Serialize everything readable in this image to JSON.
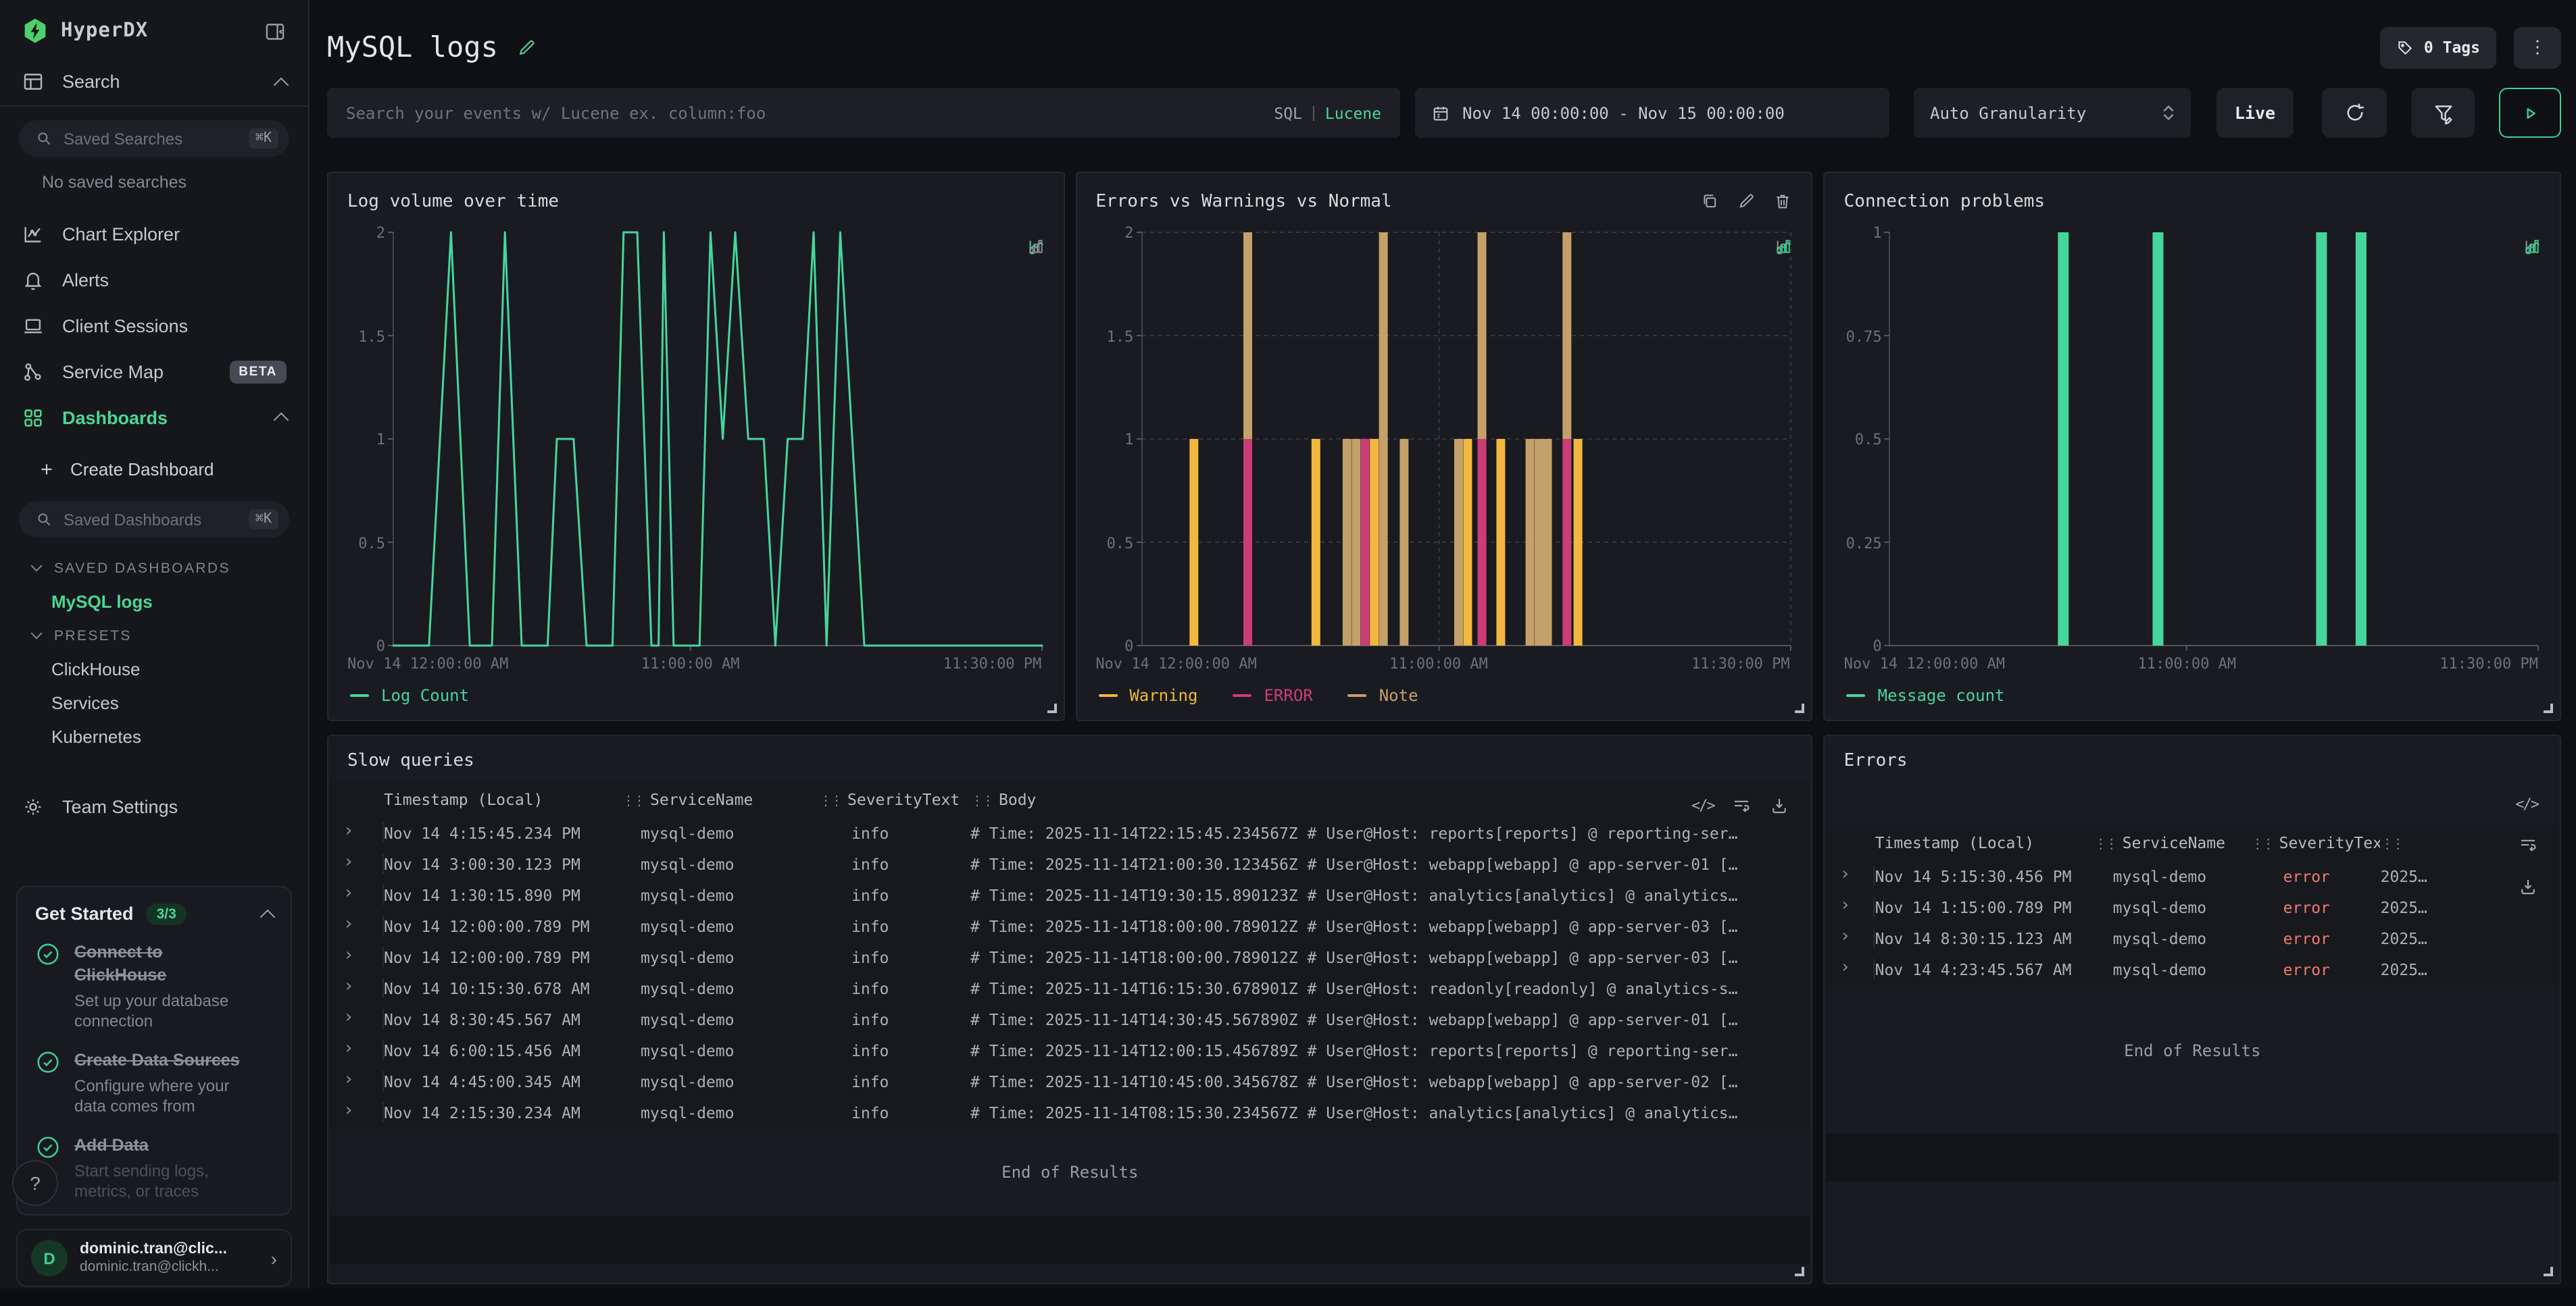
{
  "app": {
    "brand": "HyperDX"
  },
  "colors": {
    "accent_green": "#4bd795",
    "logo_green": "#50cf6e",
    "chart_green": "#45d69c",
    "warning_yellow": "#f1b73e",
    "error_pink": "#cb3d76",
    "note_tan": "#c4a06a",
    "error_text": "#ee7b72",
    "panel_bg": "#1a1b20",
    "sidebar_bg": "#16171b"
  },
  "sidebar": {
    "search_label": "Search",
    "saved_searches_placeholder": "Saved Searches",
    "shortcut": "⌘K",
    "no_saved": "No saved searches",
    "nav": [
      {
        "label": "Chart Explorer"
      },
      {
        "label": "Alerts"
      },
      {
        "label": "Client Sessions"
      },
      {
        "label": "Service Map",
        "badge": "BETA"
      },
      {
        "label": "Dashboards"
      }
    ],
    "create_dashboard": "Create Dashboard",
    "saved_dashboards_placeholder": "Saved Dashboards",
    "saved_section": "SAVED DASHBOARDS",
    "saved_items": [
      "MySQL logs"
    ],
    "presets_section": "PRESETS",
    "preset_items": [
      "ClickHouse",
      "Services",
      "Kubernetes"
    ],
    "team_settings": "Team Settings",
    "get_started": {
      "title": "Get Started",
      "badge": "3/3",
      "items": [
        {
          "title": "Connect to ClickHouse",
          "sub": "Set up your database connection"
        },
        {
          "title": "Create Data Sources",
          "sub": "Configure where your data comes from"
        },
        {
          "title": "Add Data",
          "sub": "Start sending logs, metrics, or traces"
        }
      ]
    },
    "help": "?",
    "user": {
      "initial": "D",
      "name": "dominic.tran@clic...",
      "email": "dominic.tran@clickh..."
    }
  },
  "header": {
    "title": "MySQL logs",
    "tags_label": "0 Tags",
    "kebab": "⋮"
  },
  "controls": {
    "search_placeholder": "Search your events w/ Lucene ex. column:foo",
    "sql": "SQL",
    "divider": "|",
    "lucene": "Lucene",
    "date_range": "Nov 14 00:00:00 - Nov 15 00:00:00",
    "granularity": "Auto Granularity",
    "live": "Live"
  },
  "chart_data": [
    {
      "type": "line",
      "title": "Log volume over time",
      "ylabel": "",
      "xlabel": "",
      "ylim": [
        0,
        2
      ],
      "yticks": [
        0,
        0.5,
        1,
        1.5,
        2
      ],
      "xticks": [
        {
          "label": "Nov 14 12:00:00 AM",
          "pos": 0
        },
        {
          "label": "11:00:00 AM",
          "pos": 0.458
        },
        {
          "label": "11:30:00 PM",
          "pos": 1
        }
      ],
      "grid": false,
      "active_view": "line",
      "legend": [
        {
          "label": "Log Count",
          "color": "#45d69c"
        }
      ],
      "series": [
        {
          "name": "Log Count",
          "color": "#45d69c",
          "points": [
            [
              0,
              0
            ],
            [
              0.055,
              0
            ],
            [
              0.089,
              2
            ],
            [
              0.118,
              0
            ],
            [
              0.152,
              0
            ],
            [
              0.172,
              2
            ],
            [
              0.198,
              0
            ],
            [
              0.238,
              0
            ],
            [
              0.252,
              1
            ],
            [
              0.278,
              1
            ],
            [
              0.298,
              0
            ],
            [
              0.338,
              0
            ],
            [
              0.355,
              2
            ],
            [
              0.376,
              2
            ],
            [
              0.398,
              0
            ],
            [
              0.409,
              0
            ],
            [
              0.417,
              2
            ],
            [
              0.432,
              0
            ],
            [
              0.472,
              0
            ],
            [
              0.489,
              2
            ],
            [
              0.508,
              1
            ],
            [
              0.527,
              2
            ],
            [
              0.547,
              1
            ],
            [
              0.571,
              1
            ],
            [
              0.589,
              0
            ],
            [
              0.608,
              1
            ],
            [
              0.631,
              1
            ],
            [
              0.648,
              2
            ],
            [
              0.668,
              0
            ],
            [
              0.689,
              2
            ],
            [
              0.726,
              0
            ],
            [
              0.78,
              0
            ],
            [
              1,
              0
            ]
          ]
        }
      ]
    },
    {
      "type": "stacked_bar",
      "title": "Errors vs Warnings vs Normal",
      "ylim": [
        0,
        2
      ],
      "yticks": [
        0,
        0.5,
        1,
        1.5,
        2
      ],
      "xticks": [
        {
          "label": "Nov 14 12:00:00 AM",
          "pos": 0
        },
        {
          "label": "11:00:00 AM",
          "pos": 0.458
        },
        {
          "label": "11:30:00 PM",
          "pos": 1
        }
      ],
      "grid": true,
      "active_view": "bar",
      "actions": [
        "duplicate",
        "edit",
        "delete"
      ],
      "series_colors": {
        "Warning": "#f1b73e",
        "ERROR": "#cb3d76",
        "Note": "#c4a06a"
      },
      "legend": [
        {
          "label": "Warning",
          "color": "#f1b73e"
        },
        {
          "label": "ERROR",
          "color": "#cb3d76"
        },
        {
          "label": "Note",
          "color": "#c4a06a"
        }
      ],
      "bars": [
        {
          "x": 0.08,
          "stack": [
            [
              "Warning",
              1
            ]
          ]
        },
        {
          "x": 0.163,
          "stack": [
            [
              "ERROR",
              1
            ],
            [
              "Note",
              1
            ]
          ]
        },
        {
          "x": 0.268,
          "stack": [
            [
              "Warning",
              1
            ]
          ]
        },
        {
          "x": 0.316,
          "stack": [
            [
              "Note",
              1
            ]
          ]
        },
        {
          "x": 0.33,
          "stack": [
            [
              "Note",
              1
            ]
          ]
        },
        {
          "x": 0.344,
          "stack": [
            [
              "ERROR",
              1
            ]
          ]
        },
        {
          "x": 0.358,
          "stack": [
            [
              "Warning",
              1
            ]
          ]
        },
        {
          "x": 0.372,
          "stack": [
            [
              "Note",
              2
            ]
          ]
        },
        {
          "x": 0.404,
          "stack": [
            [
              "Note",
              1
            ]
          ]
        },
        {
          "x": 0.488,
          "stack": [
            [
              "Note",
              1
            ]
          ]
        },
        {
          "x": 0.502,
          "stack": [
            [
              "Warning",
              1
            ]
          ]
        },
        {
          "x": 0.524,
          "stack": [
            [
              "ERROR",
              1
            ],
            [
              "Note",
              1
            ]
          ]
        },
        {
          "x": 0.553,
          "stack": [
            [
              "Warning",
              1
            ]
          ]
        },
        {
          "x": 0.598,
          "stack": [
            [
              "Note",
              1
            ]
          ]
        },
        {
          "x": 0.612,
          "stack": [
            [
              "Note",
              1
            ]
          ]
        },
        {
          "x": 0.625,
          "stack": [
            [
              "Note",
              1
            ]
          ]
        },
        {
          "x": 0.655,
          "stack": [
            [
              "ERROR",
              1
            ],
            [
              "Note",
              1
            ]
          ]
        },
        {
          "x": 0.672,
          "stack": [
            [
              "Warning",
              1
            ]
          ]
        }
      ]
    },
    {
      "type": "bar",
      "title": "Connection problems",
      "ylim": [
        0,
        1
      ],
      "yticks": [
        0,
        0.25,
        0.5,
        0.75,
        1
      ],
      "xticks": [
        {
          "label": "Nov 14 12:00:00 AM",
          "pos": 0
        },
        {
          "label": "11:00:00 AM",
          "pos": 0.458
        },
        {
          "label": "11:30:00 PM",
          "pos": 1
        }
      ],
      "grid": false,
      "active_view": "bar",
      "legend": [
        {
          "label": "Message count",
          "color": "#45d69c"
        }
      ],
      "bars": [
        {
          "x": 0.268,
          "v": 1
        },
        {
          "x": 0.414,
          "v": 1
        },
        {
          "x": 0.666,
          "v": 1
        },
        {
          "x": 0.727,
          "v": 1
        }
      ]
    }
  ],
  "tables": {
    "slow_queries": {
      "title": "Slow queries",
      "columns": [
        "Timestamp (Local)",
        "ServiceName",
        "SeverityText",
        "Body"
      ],
      "rows": [
        [
          "Nov 14 4:15:45.234 PM",
          "mysql-demo",
          "info",
          "# Time: 2025-11-14T22:15:45.234567Z # User@Host: reports[reports] @ reporting-ser…"
        ],
        [
          "Nov 14 3:00:30.123 PM",
          "mysql-demo",
          "info",
          "# Time: 2025-11-14T21:00:30.123456Z # User@Host: webapp[webapp] @ app-server-01 […"
        ],
        [
          "Nov 14 1:30:15.890 PM",
          "mysql-demo",
          "info",
          "# Time: 2025-11-14T19:30:15.890123Z # User@Host: analytics[analytics] @ analytics…"
        ],
        [
          "Nov 14 12:00:00.789 PM",
          "mysql-demo",
          "info",
          "# Time: 2025-11-14T18:00:00.789012Z # User@Host: webapp[webapp] @ app-server-03 […"
        ],
        [
          "Nov 14 12:00:00.789 PM",
          "mysql-demo",
          "info",
          "# Time: 2025-11-14T18:00:00.789012Z # User@Host: webapp[webapp] @ app-server-03 […"
        ],
        [
          "Nov 14 10:15:30.678 AM",
          "mysql-demo",
          "info",
          "# Time: 2025-11-14T16:15:30.678901Z # User@Host: readonly[readonly] @ analytics-s…"
        ],
        [
          "Nov 14 8:30:45.567 AM",
          "mysql-demo",
          "info",
          "# Time: 2025-11-14T14:30:45.567890Z # User@Host: webapp[webapp] @ app-server-01 […"
        ],
        [
          "Nov 14 6:00:15.456 AM",
          "mysql-demo",
          "info",
          "# Time: 2025-11-14T12:00:15.456789Z # User@Host: reports[reports] @ reporting-ser…"
        ],
        [
          "Nov 14 4:45:00.345 AM",
          "mysql-demo",
          "info",
          "# Time: 2025-11-14T10:45:00.345678Z # User@Host: webapp[webapp] @ app-server-02 […"
        ],
        [
          "Nov 14 2:15:30.234 AM",
          "mysql-demo",
          "info",
          "# Time: 2025-11-14T08:15:30.234567Z # User@Host: analytics[analytics] @ analytics…"
        ]
      ],
      "end": "End of Results"
    },
    "errors": {
      "title": "Errors",
      "columns": [
        "Timestamp (Local)",
        "ServiceName",
        "SeverityText",
        ""
      ],
      "rows": [
        [
          "Nov 14 5:15:30.456 PM",
          "mysql-demo",
          "error",
          "2025…"
        ],
        [
          "Nov 14 1:15:00.789 PM",
          "mysql-demo",
          "error",
          "2025…"
        ],
        [
          "Nov 14 8:30:15.123 AM",
          "mysql-demo",
          "error",
          "2025…"
        ],
        [
          "Nov 14 4:23:45.567 AM",
          "mysql-demo",
          "error",
          "2025…"
        ]
      ],
      "end": "End of Results"
    }
  }
}
